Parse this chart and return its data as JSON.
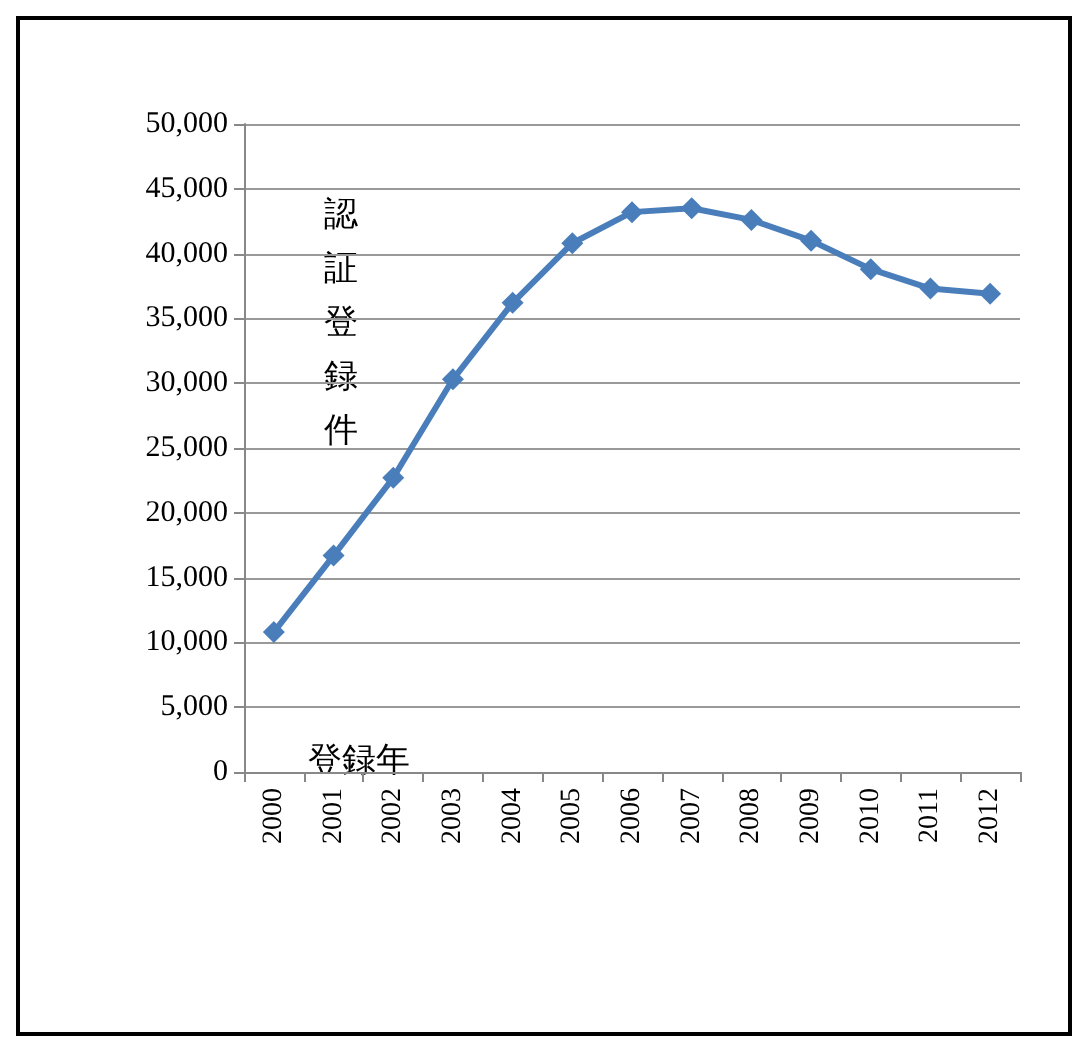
{
  "chart_data": {
    "type": "line",
    "ylabel": "認証登録件",
    "xlabel": "登録年",
    "categories": [
      "2000",
      "2001",
      "2002",
      "2003",
      "2004",
      "2005",
      "2006",
      "2007",
      "2008",
      "2009",
      "2010",
      "2011",
      "2012"
    ],
    "series": [
      {
        "color": "#4a7ebb",
        "values": [
          10800,
          16700,
          22700,
          30300,
          36200,
          40800,
          43200,
          43500,
          42600,
          41000,
          38800,
          37300,
          36900
        ]
      }
    ],
    "ylim": [
      0,
      50000
    ],
    "yticks": [
      0,
      {
        "value": 5000,
        "label": "5,000"
      },
      {
        "value": 10000,
        "label": "10,000"
      },
      {
        "value": 15000,
        "label": "15,000"
      },
      {
        "value": 20000,
        "label": "20,000"
      },
      {
        "value": 25000,
        "label": "25,000"
      },
      {
        "value": 30000,
        "label": "30,000"
      },
      {
        "value": 35000,
        "label": "35,000"
      },
      {
        "value": 40000,
        "label": "40,000"
      },
      {
        "value": 45000,
        "label": "45,000"
      },
      {
        "value": 50000,
        "label": "50,000"
      }
    ],
    "grid": "y",
    "marker": "diamond",
    "line_style": "solid"
  }
}
